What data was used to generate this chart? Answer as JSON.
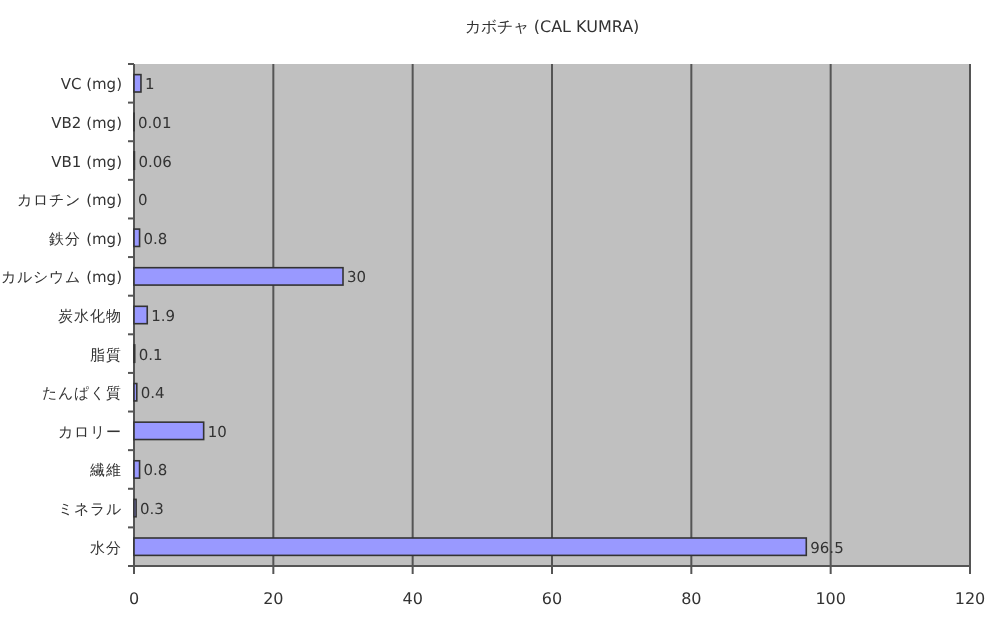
{
  "chart_data": {
    "type": "bar",
    "orientation": "horizontal",
    "title": "カボチャ (CAL KUMRA)",
    "categories": [
      "VC (mg)",
      "VB2 (mg)",
      "VB1 (mg)",
      "カロチン (mg)",
      "鉄分 (mg)",
      "カルシウム (mg)",
      "炭水化物",
      "脂質",
      "たんぱく質",
      "カロリー",
      "繊維",
      "ミネラル",
      "水分"
    ],
    "values": [
      1,
      0.01,
      0.06,
      0,
      0.8,
      30,
      1.9,
      0.1,
      0.4,
      10,
      0.8,
      0.3,
      96.5
    ],
    "color": "#9999ff",
    "xlim": [
      0,
      120
    ],
    "xticks": [
      0,
      20,
      40,
      60,
      80,
      100,
      120
    ],
    "grid": "x",
    "data_labels": true
  }
}
